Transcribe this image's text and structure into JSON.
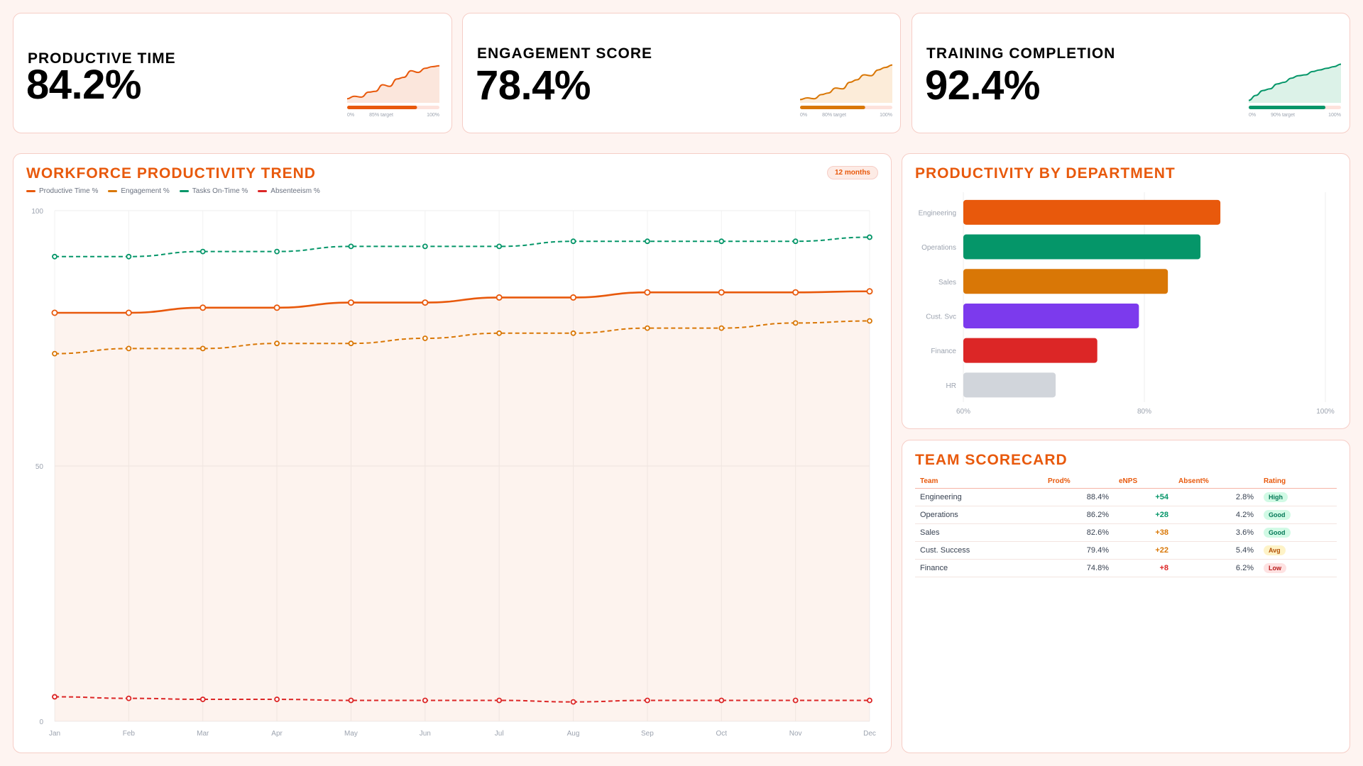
{
  "kpis": [
    {
      "title": "PRODUCTIVE TIME",
      "value": "84.2%",
      "color": "#e8590c",
      "fill": "#fbe6dc",
      "spark": [
        0.1,
        0.16,
        0.14,
        0.26,
        0.28,
        0.44,
        0.4,
        0.58,
        0.62,
        0.78,
        0.74,
        0.84,
        0.88,
        0.9
      ],
      "progress": 0.842,
      "scale_left": "0%",
      "scale_mid": "85% target",
      "scale_right": "100%"
    },
    {
      "title": "ENGAGEMENT SCORE",
      "value": "78.4%",
      "color": "#d97706",
      "fill": "#fcecd9",
      "spark": [
        0.08,
        0.12,
        0.1,
        0.2,
        0.24,
        0.36,
        0.34,
        0.5,
        0.56,
        0.68,
        0.66,
        0.8,
        0.86,
        0.92
      ],
      "progress": 0.784,
      "scale_left": "0%",
      "scale_mid": "80% target",
      "scale_right": "100%"
    },
    {
      "title": "TRAINING COMPLETION",
      "value": "92.4%",
      "color": "#059669",
      "fill": "#dcf2e8",
      "spark": [
        0.06,
        0.18,
        0.3,
        0.34,
        0.46,
        0.5,
        0.6,
        0.66,
        0.68,
        0.76,
        0.8,
        0.84,
        0.88,
        0.94
      ],
      "progress": 0.924,
      "scale_left": "0%",
      "scale_mid": "90% target",
      "scale_right": "100%"
    }
  ],
  "trend": {
    "title": "WORKFORCE PRODUCTIVITY TREND",
    "badge": "12 months"
  },
  "department": {
    "title": "PRODUCTIVITY BY DEPARTMENT"
  },
  "scorecard": {
    "title": "TEAM SCORECARD",
    "columns": [
      "Team",
      "Prod%",
      "eNPS",
      "Absent%",
      "Rating"
    ],
    "rows": [
      {
        "team": "Engineering",
        "prod": "88.4%",
        "enps": "+54",
        "absent": "2.8%",
        "rating": "High",
        "enps_color": "#059669",
        "rating_bg": "#d1fae5",
        "rating_fg": "#047857"
      },
      {
        "team": "Operations",
        "prod": "86.2%",
        "enps": "+28",
        "absent": "4.2%",
        "rating": "Good",
        "enps_color": "#059669",
        "rating_bg": "#d1fae5",
        "rating_fg": "#047857"
      },
      {
        "team": "Sales",
        "prod": "82.6%",
        "enps": "+38",
        "absent": "3.6%",
        "rating": "Good",
        "enps_color": "#d97706",
        "rating_bg": "#d1fae5",
        "rating_fg": "#047857"
      },
      {
        "team": "Cust. Success",
        "prod": "79.4%",
        "enps": "+22",
        "absent": "5.4%",
        "rating": "Avg",
        "enps_color": "#d97706",
        "rating_bg": "#fef3c7",
        "rating_fg": "#b45309"
      },
      {
        "team": "Finance",
        "prod": "74.8%",
        "enps": "+8",
        "absent": "6.2%",
        "rating": "Low",
        "enps_color": "#dc2626",
        "rating_bg": "#fee2e2",
        "rating_fg": "#b91c1c"
      }
    ]
  },
  "chart_data": [
    {
      "type": "line",
      "title": "WORKFORCE PRODUCTIVITY TREND",
      "x": [
        "Jan",
        "Feb",
        "Mar",
        "Apr",
        "May",
        "Jun",
        "Jul",
        "Aug",
        "Sep",
        "Oct",
        "Nov",
        "Dec"
      ],
      "ylim": [
        0,
        100
      ],
      "yticks": [
        0,
        50,
        100
      ],
      "grid": true,
      "legend": "top-left",
      "series": [
        {
          "name": "Productive Time %",
          "color": "#e8590c",
          "dashed": false,
          "filled": true,
          "values": [
            80.0,
            80.0,
            81.0,
            81.0,
            82.0,
            82.0,
            83.0,
            83.0,
            84.0,
            84.0,
            84.0,
            84.2
          ]
        },
        {
          "name": "Engagement %",
          "color": "#d97706",
          "dashed": true,
          "filled": false,
          "values": [
            72.0,
            73.0,
            73.0,
            74.0,
            74.0,
            75.0,
            76.0,
            76.0,
            77.0,
            77.0,
            78.0,
            78.4
          ]
        },
        {
          "name": "Tasks On-Time %",
          "color": "#059669",
          "dashed": true,
          "filled": false,
          "values": [
            91.0,
            91.0,
            92.0,
            92.0,
            93.0,
            93.0,
            93.0,
            94.0,
            94.0,
            94.0,
            94.0,
            94.8
          ]
        },
        {
          "name": "Absenteeism %",
          "color": "#dc2626",
          "dashed": true,
          "filled": false,
          "values": [
            4.8,
            4.5,
            4.3,
            4.3,
            4.1,
            4.1,
            4.1,
            3.8,
            4.1,
            4.1,
            4.1,
            4.1
          ]
        }
      ]
    },
    {
      "type": "bar",
      "orientation": "horizontal",
      "title": "PRODUCTIVITY BY DEPARTMENT",
      "categories": [
        "Engineering",
        "Operations",
        "Sales",
        "Cust. Svc",
        "Finance",
        "HR"
      ],
      "values": [
        88.4,
        86.2,
        82.6,
        79.4,
        74.8,
        70.2
      ],
      "colors": [
        "#e8590c",
        "#059669",
        "#d97706",
        "#7c3aed",
        "#dc2626",
        "#d1d5db"
      ],
      "xlim": [
        60,
        100
      ],
      "xticks": [
        "60%",
        "80%",
        "100%"
      ],
      "grid": true
    }
  ]
}
